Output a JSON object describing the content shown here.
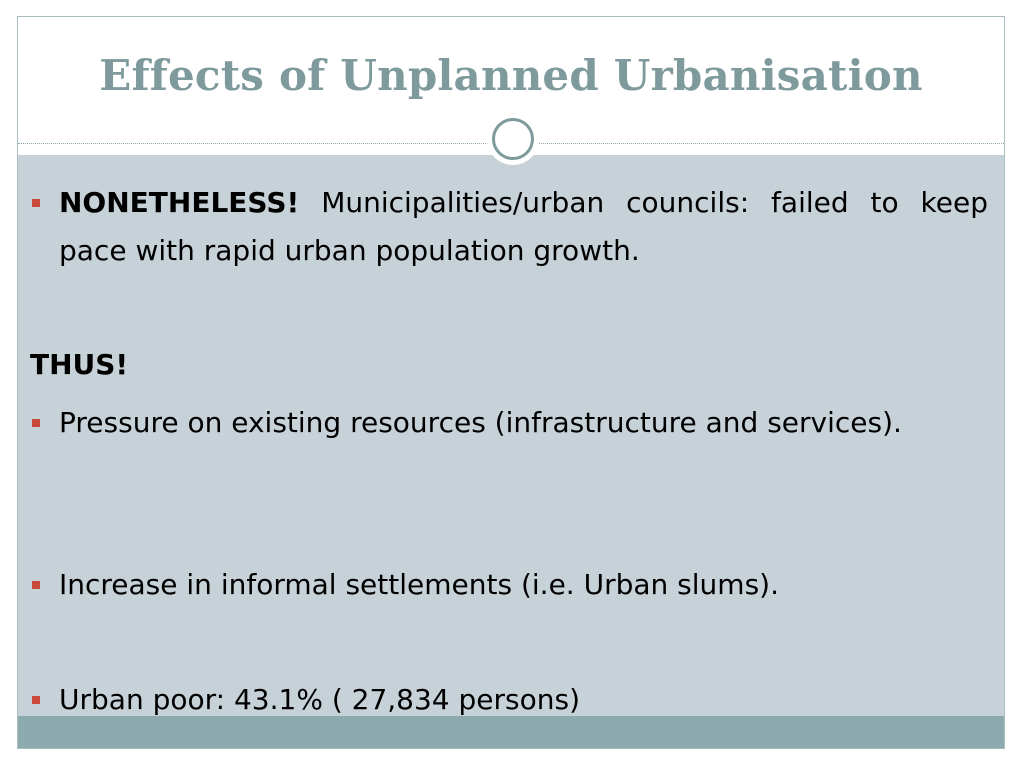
{
  "slide": {
    "title": "Effects of Unplanned Urbanisation",
    "bullets": [
      {
        "lead": "NONETHELESS!",
        "text": " Municipalities/urban councils: failed to keep pace with rapid urban population growth."
      }
    ],
    "subheading": "THUS!",
    "points": [
      "Pressure on existing resources (infrastructure and services).",
      "Increase in informal settlements (i.e. Urban slums).",
      "Urban poor: 43.1% ( 27,834 persons)"
    ],
    "colors": {
      "title": "#7e9a9c",
      "content_bg": "#c6d2d8",
      "footer_bar": "#8dabaf",
      "bullet": "#c94a3a"
    }
  }
}
